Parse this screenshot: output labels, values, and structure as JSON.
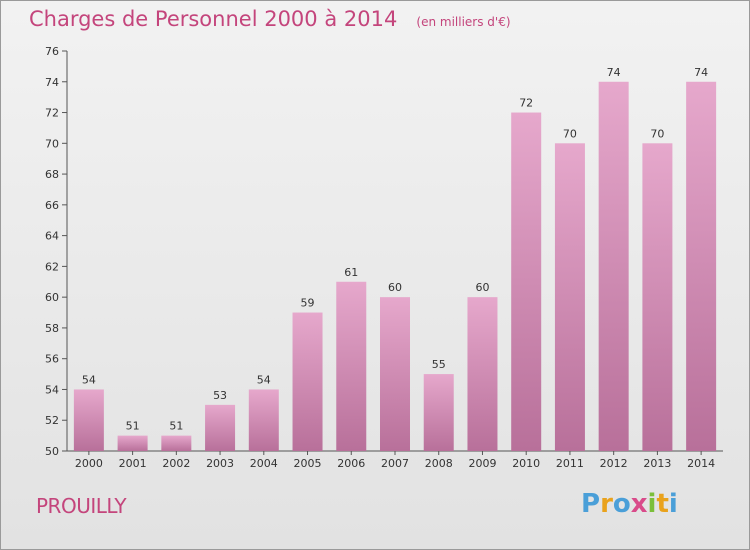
{
  "header": {
    "title": "Charges de Personnel 2000 à 2014",
    "unit": "(en milliers d'€)"
  },
  "footer": {
    "commune": "PROUILLY",
    "logo": "Proxiti",
    "logo_colors": [
      "#4a9fd8",
      "#e9a21c",
      "#4a9fd8",
      "#d94b8a",
      "#7bbf3a",
      "#e9a21c",
      "#4a9fd8"
    ]
  },
  "colors": {
    "bar_top": "#e6a8cc",
    "bar_bottom": "#b8709a",
    "title": "#c4457c"
  },
  "chart_data": {
    "type": "bar",
    "categories": [
      "2000",
      "2001",
      "2002",
      "2003",
      "2004",
      "2005",
      "2006",
      "2007",
      "2008",
      "2009",
      "2010",
      "2011",
      "2012",
      "2013",
      "2014"
    ],
    "values": [
      54,
      51,
      51,
      53,
      54,
      59,
      61,
      60,
      55,
      60,
      72,
      70,
      74,
      70,
      74
    ],
    "ylim": [
      50,
      76
    ],
    "yticks": [
      50,
      52,
      54,
      56,
      58,
      60,
      62,
      64,
      66,
      68,
      70,
      72,
      74,
      76
    ],
    "grid": false,
    "xlabel": "",
    "ylabel": ""
  }
}
